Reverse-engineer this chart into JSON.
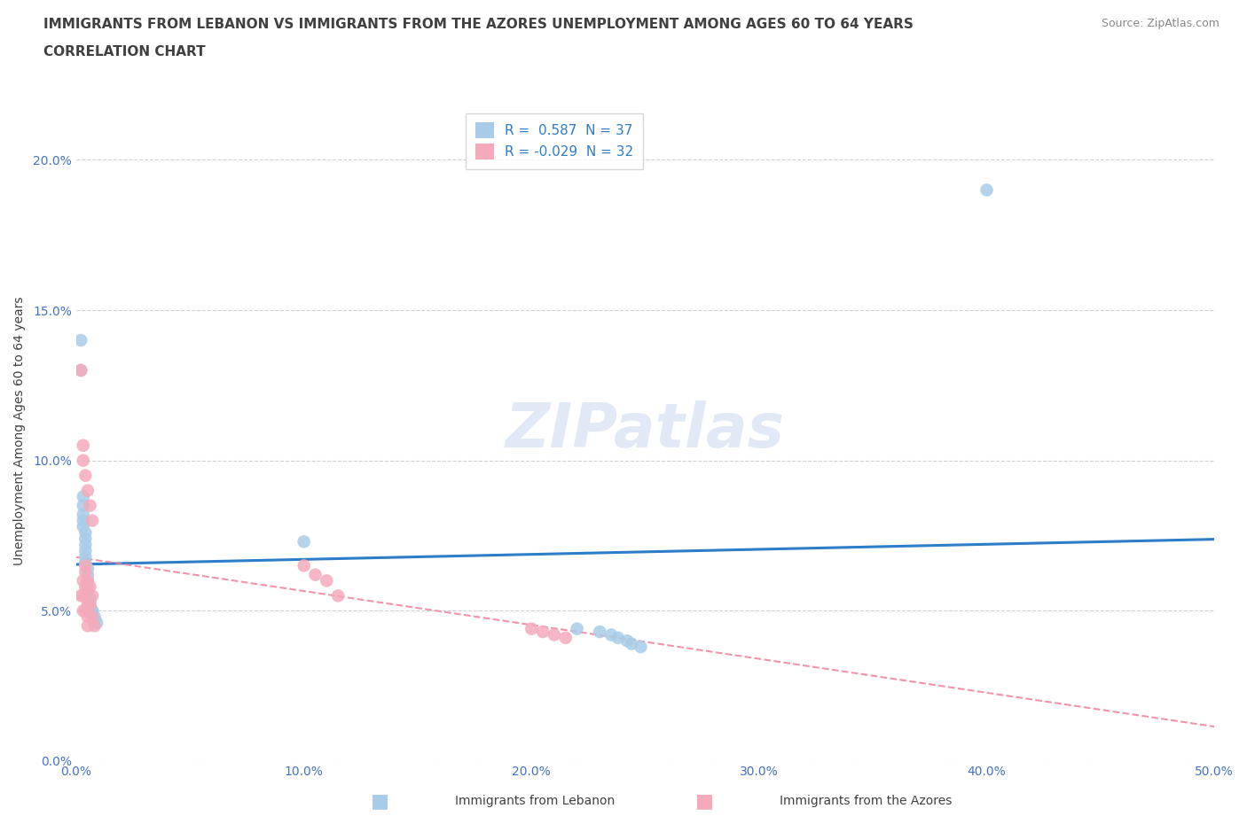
{
  "title_line1": "IMMIGRANTS FROM LEBANON VS IMMIGRANTS FROM THE AZORES UNEMPLOYMENT AMONG AGES 60 TO 64 YEARS",
  "title_line2": "CORRELATION CHART",
  "source": "Source: ZipAtlas.com",
  "ylabel": "Unemployment Among Ages 60 to 64 years",
  "xlabel_lebanon": "Immigrants from Lebanon",
  "xlabel_azores": "Immigrants from the Azores",
  "watermark": "ZIPatlas",
  "legend_r_lebanon": "R =  0.587  N = 37",
  "legend_r_azores": "R = -0.029  N = 32",
  "color_lebanon": "#A8CCE8",
  "color_azores": "#F4AABB",
  "line_color_lebanon": "#2D7DC8",
  "line_color_azores": "#F08098",
  "xlim": [
    0.0,
    0.5
  ],
  "ylim": [
    0.0,
    0.22
  ],
  "xticks": [
    0.0,
    0.1,
    0.2,
    0.3,
    0.4,
    0.5
  ],
  "yticks": [
    0.0,
    0.05,
    0.1,
    0.15,
    0.2
  ],
  "lebanon_x": [
    0.002,
    0.002,
    0.003,
    0.003,
    0.003,
    0.003,
    0.003,
    0.004,
    0.004,
    0.004,
    0.004,
    0.004,
    0.004,
    0.005,
    0.005,
    0.005,
    0.005,
    0.005,
    0.006,
    0.006,
    0.006,
    0.006,
    0.007,
    0.007,
    0.007,
    0.008,
    0.008,
    0.009,
    0.1,
    0.22,
    0.23,
    0.235,
    0.238,
    0.242,
    0.244,
    0.248,
    0.4
  ],
  "lebanon_y": [
    0.14,
    0.13,
    0.088,
    0.085,
    0.082,
    0.08,
    0.078,
    0.076,
    0.074,
    0.072,
    0.07,
    0.068,
    0.066,
    0.064,
    0.062,
    0.06,
    0.058,
    0.056,
    0.054,
    0.053,
    0.052,
    0.051,
    0.05,
    0.05,
    0.049,
    0.048,
    0.047,
    0.046,
    0.073,
    0.044,
    0.043,
    0.042,
    0.041,
    0.04,
    0.039,
    0.038,
    0.19
  ],
  "azores_x": [
    0.002,
    0.002,
    0.003,
    0.003,
    0.003,
    0.003,
    0.003,
    0.004,
    0.004,
    0.004,
    0.004,
    0.004,
    0.005,
    0.005,
    0.005,
    0.005,
    0.005,
    0.006,
    0.006,
    0.006,
    0.007,
    0.007,
    0.007,
    0.008,
    0.1,
    0.105,
    0.11,
    0.115,
    0.2,
    0.205,
    0.21,
    0.215
  ],
  "azores_y": [
    0.13,
    0.055,
    0.105,
    0.1,
    0.06,
    0.055,
    0.05,
    0.095,
    0.065,
    0.063,
    0.058,
    0.05,
    0.09,
    0.06,
    0.052,
    0.048,
    0.045,
    0.085,
    0.058,
    0.052,
    0.08,
    0.055,
    0.048,
    0.045,
    0.065,
    0.062,
    0.06,
    0.055,
    0.044,
    0.043,
    0.042,
    0.041
  ],
  "tick_color": "#4472C4",
  "title_color": "#404040",
  "label_color": "#404040",
  "title_fontsize": 11,
  "axis_label_fontsize": 10,
  "tick_fontsize": 10
}
